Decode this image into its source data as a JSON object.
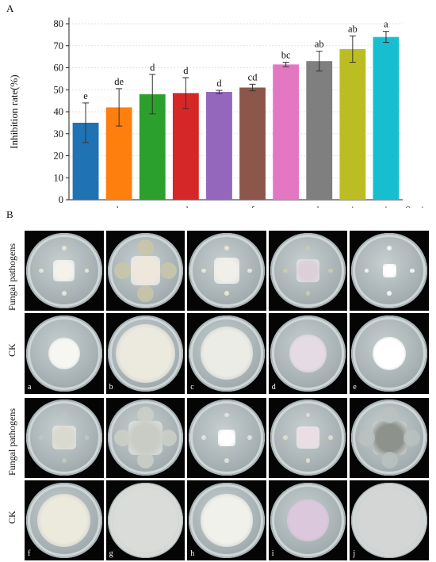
{
  "panel_a_label": "A",
  "panel_b_label": "B",
  "chart_data": {
    "type": "bar",
    "categories": [
      "a",
      "b",
      "c",
      "d",
      "e",
      "f",
      "g",
      "h",
      "i",
      "j"
    ],
    "values": [
      35,
      42,
      48,
      48.5,
      49,
      51,
      61.5,
      63,
      68.5,
      74
    ],
    "errors": [
      9,
      8.5,
      9,
      7,
      0.7,
      1.5,
      1,
      4.5,
      6,
      2.5
    ],
    "significance": [
      "e",
      "de",
      "d",
      "d",
      "d",
      "cd",
      "bc",
      "ab",
      "ab",
      "a"
    ],
    "colors": [
      "#1f73b4",
      "#ff7f0e",
      "#2ca02c",
      "#d62728",
      "#9467bd",
      "#8c564b",
      "#e377c2",
      "#7f7f7f",
      "#bcbd22",
      "#17becf"
    ],
    "ylabel": "Inhibition rate(%)",
    "xlabel": "Strain",
    "ylim": [
      0,
      80
    ],
    "yticks": [
      0,
      10,
      20,
      30,
      40,
      50,
      60,
      70,
      80
    ],
    "grid": true
  },
  "panel_b": {
    "row_labels": [
      "Fungal pathogens",
      "CK",
      "Fungal pathogens",
      "CK"
    ],
    "dishes": [
      {
        "row": 0,
        "col": 0,
        "label": "",
        "type": "pathogen",
        "colony": "#f4f2ec",
        "size": 0.28,
        "fungus": "#e7e4d6"
      },
      {
        "row": 0,
        "col": 1,
        "label": "",
        "type": "pathogen",
        "colony": "#efe7dc",
        "size": 0.38,
        "fungus": "#c9c7a8"
      },
      {
        "row": 0,
        "col": 2,
        "label": "",
        "type": "pathogen",
        "colony": "#f1efe9",
        "size": 0.34,
        "fungus": "#e7e4d6"
      },
      {
        "row": 0,
        "col": 3,
        "label": "",
        "type": "pathogen",
        "colony": "#dcd0d8",
        "size": 0.3,
        "fungus": "#c9c9b4"
      },
      {
        "row": 0,
        "col": 4,
        "label": "",
        "type": "pathogen",
        "colony": "#ffffff",
        "size": 0.18,
        "fungus": "#f2f2ee"
      },
      {
        "row": 1,
        "col": 0,
        "label": "a",
        "type": "ck",
        "colony": "#f6f6f2",
        "size": 0.42
      },
      {
        "row": 1,
        "col": 1,
        "label": "b",
        "type": "ck",
        "colony": "#eceadf",
        "size": 0.78
      },
      {
        "row": 1,
        "col": 2,
        "label": "c",
        "type": "ck",
        "colony": "#ecece6",
        "size": 0.7
      },
      {
        "row": 1,
        "col": 3,
        "label": "d",
        "type": "ck",
        "colony": "#e4dbe4",
        "size": 0.5
      },
      {
        "row": 1,
        "col": 4,
        "label": "e",
        "type": "ck",
        "colony": "#ffffff",
        "size": 0.44
      },
      {
        "row": 2,
        "col": 0,
        "label": "",
        "type": "pathogen",
        "colony": "#dad9cf",
        "size": 0.32,
        "fungus": "#bfc6c2"
      },
      {
        "row": 2,
        "col": 1,
        "label": "",
        "type": "pathogen",
        "colony": "#c9ccc5",
        "size": 0.45,
        "fungus": "#cbd0c8"
      },
      {
        "row": 2,
        "col": 2,
        "label": "",
        "type": "pathogen",
        "colony": "#ffffff",
        "size": 0.22,
        "fungus": "#dfe1dc"
      },
      {
        "row": 2,
        "col": 3,
        "label": "",
        "type": "pathogen",
        "colony": "#eadde3",
        "size": 0.3,
        "fungus": "#dcdcd0"
      },
      {
        "row": 2,
        "col": 4,
        "label": "",
        "type": "pathogen",
        "colony": "#8d938c",
        "size": 0.45,
        "fungus": "#b9c2c0"
      },
      {
        "row": 3,
        "col": 0,
        "label": "f",
        "type": "ck",
        "colony": "#ece9dd",
        "size": 0.7
      },
      {
        "row": 3,
        "col": 1,
        "label": "g",
        "type": "ck",
        "colony": "#d9dcd8",
        "size": 0.98
      },
      {
        "row": 3,
        "col": 2,
        "label": "h",
        "type": "ck",
        "colony": "#f1f1ec",
        "size": 0.7
      },
      {
        "row": 3,
        "col": 3,
        "label": "i",
        "type": "ck",
        "colony": "#dcc8dd",
        "size": 0.55
      },
      {
        "row": 3,
        "col": 4,
        "label": "j",
        "type": "ck",
        "colony": "#d3d6d5",
        "size": 0.98
      }
    ]
  }
}
